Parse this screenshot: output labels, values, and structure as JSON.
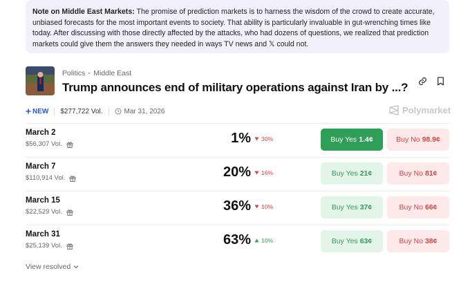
{
  "note": {
    "label": "Note on Middle East Markets:",
    "text": "The promise of prediction markets is to harness the wisdom of the crowd to create accurate, unbiased forecasts for the most important events to society. That ability is particularly invaluable in gut-wrenching times like today. After discussing with those directly affected by the attacks, who had dozens of questions, we realized that prediction markets could give them the answers they needed in ways TV news and 𝕏 could not."
  },
  "market": {
    "breadcrumbs": [
      "Politics",
      "Middle East"
    ],
    "title": "Trump announces end of military operations against Iran by ...?",
    "badge": "NEW",
    "volume": "$277,722 Vol.",
    "date": "Mar 31, 2026",
    "brand": "Polymarket"
  },
  "outcomes": [
    {
      "label": "March 2",
      "volume": "$56,307 Vol.",
      "chance": "1%",
      "change": "30%",
      "direction": "down",
      "yes_label": "Buy Yes",
      "yes_price": "1.4¢",
      "no_label": "Buy No",
      "no_price": "98.9¢"
    },
    {
      "label": "March 7",
      "volume": "$110,914 Vol.",
      "chance": "20%",
      "change": "16%",
      "direction": "down",
      "yes_label": "Buy Yes",
      "yes_price": "21¢",
      "no_label": "Buy No",
      "no_price": "81¢"
    },
    {
      "label": "March 15",
      "volume": "$22,529 Vol.",
      "chance": "36%",
      "change": "10%",
      "direction": "down",
      "yes_label": "Buy Yes",
      "yes_price": "37¢",
      "no_label": "Buy No",
      "no_price": "66¢"
    },
    {
      "label": "March 31",
      "volume": "$25,139 Vol.",
      "chance": "63%",
      "change": "10%",
      "direction": "up",
      "yes_label": "Buy Yes",
      "yes_price": "63¢",
      "no_label": "Buy No",
      "no_price": "38¢"
    }
  ],
  "footer": {
    "view_resolved": "View resolved"
  }
}
